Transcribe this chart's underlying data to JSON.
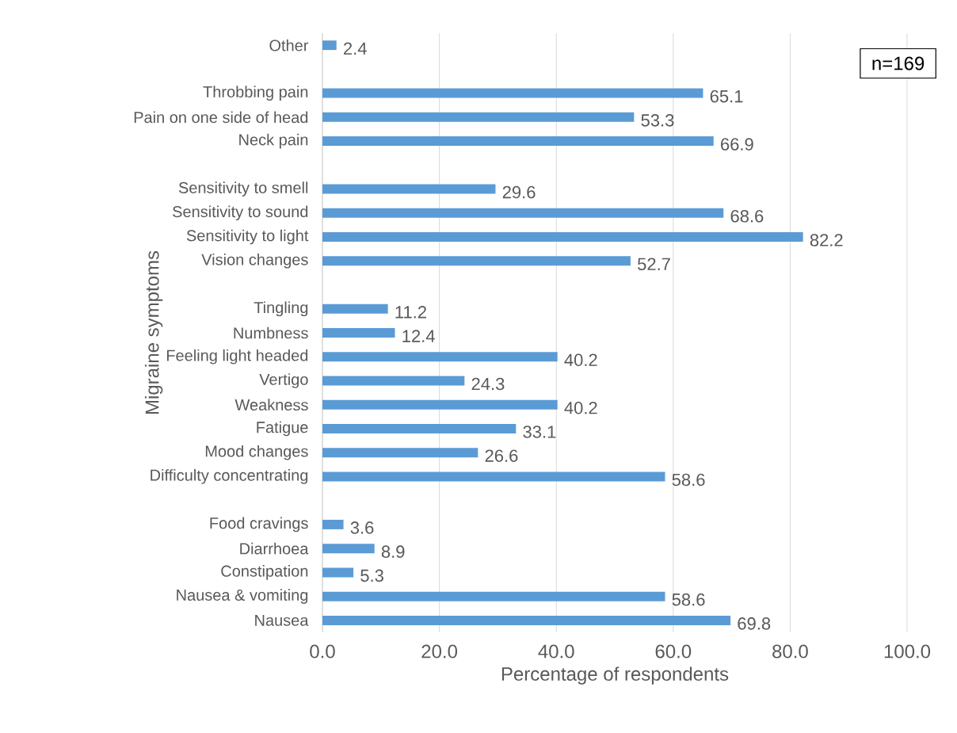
{
  "chart_data": {
    "type": "bar",
    "orientation": "horizontal",
    "xlabel": "Percentage of respondents",
    "ylabel": "Migraine symptoms",
    "categories": [
      "Other",
      null,
      "Throbbing pain",
      "Pain on one side of head",
      "Neck pain",
      null,
      "Sensitivity to smell",
      "Sensitivity to sound",
      "Sensitivity to light",
      "Vision changes",
      null,
      "Tingling",
      "Numbness",
      "Feeling light headed",
      "Vertigo",
      "Weakness",
      "Fatigue",
      "Mood changes",
      "Difficulty concentrating",
      null,
      "Food cravings",
      "Diarrhoea",
      "Constipation",
      "Nausea & vomiting",
      "Nausea"
    ],
    "values": [
      2.4,
      null,
      65.1,
      53.3,
      66.9,
      null,
      29.6,
      68.6,
      82.2,
      52.7,
      null,
      11.2,
      12.4,
      40.2,
      24.3,
      40.2,
      33.1,
      26.6,
      58.6,
      null,
      3.6,
      8.9,
      5.3,
      58.6,
      69.8
    ],
    "color": "#5b9bd5",
    "data_labels": true,
    "grid": "x",
    "xlim": [
      0,
      100
    ],
    "xticks": [
      {
        "value": 0,
        "label": "0.0"
      },
      {
        "value": 20,
        "label": "20.0"
      },
      {
        "value": 40,
        "label": "40.0"
      },
      {
        "value": 60,
        "label": "60.0"
      },
      {
        "value": 80,
        "label": "80.0"
      },
      {
        "value": 100,
        "label": "100.0"
      }
    ],
    "annotations": [
      "n=169"
    ]
  }
}
